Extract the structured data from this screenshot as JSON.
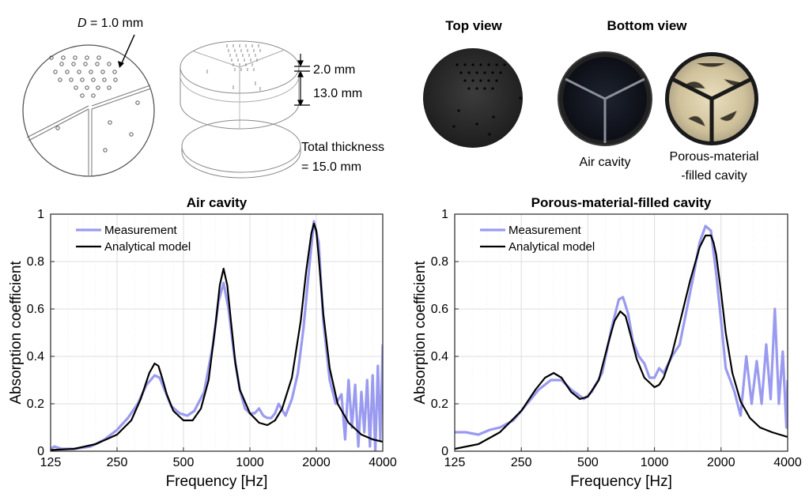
{
  "schematic": {
    "hole_label_var": "D",
    "hole_label_value": " = 1.0 mm",
    "dim_top": "2.0 mm",
    "dim_cavity": "13.0 mm",
    "total_line1": "Total thickness",
    "total_line2": "= 15.0 mm"
  },
  "photos": {
    "top_view_title": "Top view",
    "bottom_view_title": "Bottom view",
    "air_caption": "Air cavity",
    "porous_caption_line1": "Porous-material",
    "porous_caption_line2": "-filled cavity"
  },
  "chart_data": [
    {
      "type": "line",
      "title": "Air cavity",
      "xlabel": "Frequency [Hz]",
      "ylabel": "Absorption coefficient",
      "xscale": "log",
      "xlim": [
        125,
        4000
      ],
      "ylim": [
        0,
        1
      ],
      "xticks": [
        125,
        250,
        500,
        1000,
        2000,
        4000
      ],
      "xticklabels": [
        "125",
        "250",
        "500",
        "1000",
        "2000",
        "4000"
      ],
      "yticks": [
        0,
        0.2,
        0.4,
        0.6,
        0.8,
        1
      ],
      "yticklabels": [
        "0",
        "0.2",
        "0.4",
        "0.6",
        "0.8",
        "1"
      ],
      "grid": true,
      "legend": "top-left",
      "series": [
        {
          "name": "Measurement",
          "color": "#9a9af0",
          "x": [
            125,
            130,
            140,
            160,
            190,
            220,
            250,
            280,
            310,
            340,
            370,
            390,
            410,
            440,
            480,
            520,
            560,
            620,
            680,
            720,
            760,
            800,
            850,
            900,
            950,
            1000,
            1050,
            1100,
            1150,
            1200,
            1250,
            1300,
            1350,
            1450,
            1550,
            1650,
            1750,
            1850,
            1950,
            2050,
            2150,
            2300,
            2450,
            2600,
            2700,
            2800,
            2900,
            3000,
            3100,
            3200,
            3300,
            3400,
            3500,
            3600,
            3700,
            3800,
            3900,
            4000
          ],
          "y": [
            0.01,
            0.02,
            0.01,
            0.01,
            0.02,
            0.05,
            0.09,
            0.14,
            0.2,
            0.28,
            0.32,
            0.31,
            0.26,
            0.19,
            0.16,
            0.15,
            0.17,
            0.25,
            0.45,
            0.63,
            0.71,
            0.6,
            0.4,
            0.26,
            0.18,
            0.16,
            0.16,
            0.18,
            0.15,
            0.14,
            0.14,
            0.16,
            0.2,
            0.15,
            0.22,
            0.33,
            0.52,
            0.76,
            0.97,
            0.88,
            0.55,
            0.3,
            0.2,
            0.24,
            0.05,
            0.3,
            0.1,
            0.28,
            0.02,
            0.25,
            0.08,
            0.3,
            0.02,
            0.32,
            0.0,
            0.36,
            0.05,
            0.45
          ]
        },
        {
          "name": "Analytical model",
          "color": "#000000",
          "x": [
            125,
            160,
            200,
            250,
            290,
            320,
            350,
            370,
            385,
            400,
            420,
            450,
            500,
            550,
            600,
            650,
            700,
            730,
            760,
            790,
            820,
            860,
            900,
            1000,
            1100,
            1200,
            1300,
            1400,
            1550,
            1700,
            1800,
            1900,
            1950,
            2000,
            2050,
            2150,
            2300,
            2500,
            2800,
            3200,
            3600,
            4000
          ],
          "y": [
            0.005,
            0.01,
            0.03,
            0.07,
            0.13,
            0.22,
            0.33,
            0.37,
            0.36,
            0.31,
            0.24,
            0.17,
            0.13,
            0.13,
            0.18,
            0.3,
            0.54,
            0.7,
            0.77,
            0.7,
            0.55,
            0.37,
            0.26,
            0.16,
            0.12,
            0.11,
            0.13,
            0.18,
            0.31,
            0.55,
            0.76,
            0.92,
            0.96,
            0.93,
            0.82,
            0.58,
            0.35,
            0.2,
            0.12,
            0.07,
            0.05,
            0.04
          ]
        }
      ]
    },
    {
      "type": "line",
      "title": "Porous-material-filled cavity",
      "xlabel": "Frequency [Hz]",
      "ylabel": "Absorption coefficient",
      "xscale": "log",
      "xlim": [
        125,
        4000
      ],
      "ylim": [
        0,
        1
      ],
      "xticks": [
        125,
        250,
        500,
        1000,
        2000,
        4000
      ],
      "xticklabels": [
        "125",
        "250",
        "500",
        "1000",
        "2000",
        "4000"
      ],
      "yticks": [
        0,
        0.2,
        0.4,
        0.6,
        0.8,
        1
      ],
      "yticklabels": [
        "0",
        "0.2",
        "0.4",
        "0.6",
        "0.8",
        "1"
      ],
      "grid": true,
      "legend": "top-left",
      "series": [
        {
          "name": "Measurement",
          "color": "#9a9af0",
          "x": [
            125,
            140,
            160,
            180,
            200,
            230,
            260,
            300,
            340,
            380,
            420,
            450,
            480,
            520,
            580,
            640,
            690,
            720,
            760,
            800,
            850,
            900,
            950,
            1000,
            1050,
            1100,
            1200,
            1300,
            1400,
            1500,
            1600,
            1700,
            1800,
            1900,
            2000,
            2100,
            2200,
            2300,
            2450,
            2600,
            2750,
            2900,
            3050,
            3200,
            3350,
            3500,
            3650,
            3800,
            3950,
            4000
          ],
          "y": [
            0.08,
            0.08,
            0.07,
            0.09,
            0.1,
            0.13,
            0.19,
            0.26,
            0.3,
            0.3,
            0.26,
            0.24,
            0.22,
            0.25,
            0.33,
            0.52,
            0.64,
            0.65,
            0.58,
            0.46,
            0.4,
            0.37,
            0.31,
            0.31,
            0.35,
            0.33,
            0.4,
            0.45,
            0.6,
            0.74,
            0.88,
            0.95,
            0.93,
            0.75,
            0.55,
            0.35,
            0.3,
            0.25,
            0.15,
            0.4,
            0.2,
            0.38,
            0.2,
            0.45,
            0.22,
            0.6,
            0.2,
            0.42,
            0.1,
            0.3
          ]
        },
        {
          "name": "Analytical model",
          "color": "#000000",
          "x": [
            125,
            160,
            200,
            250,
            290,
            320,
            350,
            380,
            420,
            460,
            500,
            560,
            620,
            660,
            700,
            740,
            780,
            830,
            900,
            1000,
            1050,
            1100,
            1200,
            1300,
            1450,
            1600,
            1700,
            1800,
            1850,
            1900,
            2000,
            2100,
            2250,
            2450,
            2700,
            3000,
            3400,
            4000
          ],
          "y": [
            0.01,
            0.03,
            0.08,
            0.17,
            0.26,
            0.31,
            0.33,
            0.31,
            0.25,
            0.22,
            0.23,
            0.3,
            0.46,
            0.55,
            0.59,
            0.57,
            0.49,
            0.39,
            0.31,
            0.27,
            0.28,
            0.31,
            0.41,
            0.54,
            0.72,
            0.86,
            0.91,
            0.91,
            0.88,
            0.83,
            0.67,
            0.5,
            0.33,
            0.21,
            0.14,
            0.1,
            0.08,
            0.06
          ]
        }
      ]
    }
  ]
}
